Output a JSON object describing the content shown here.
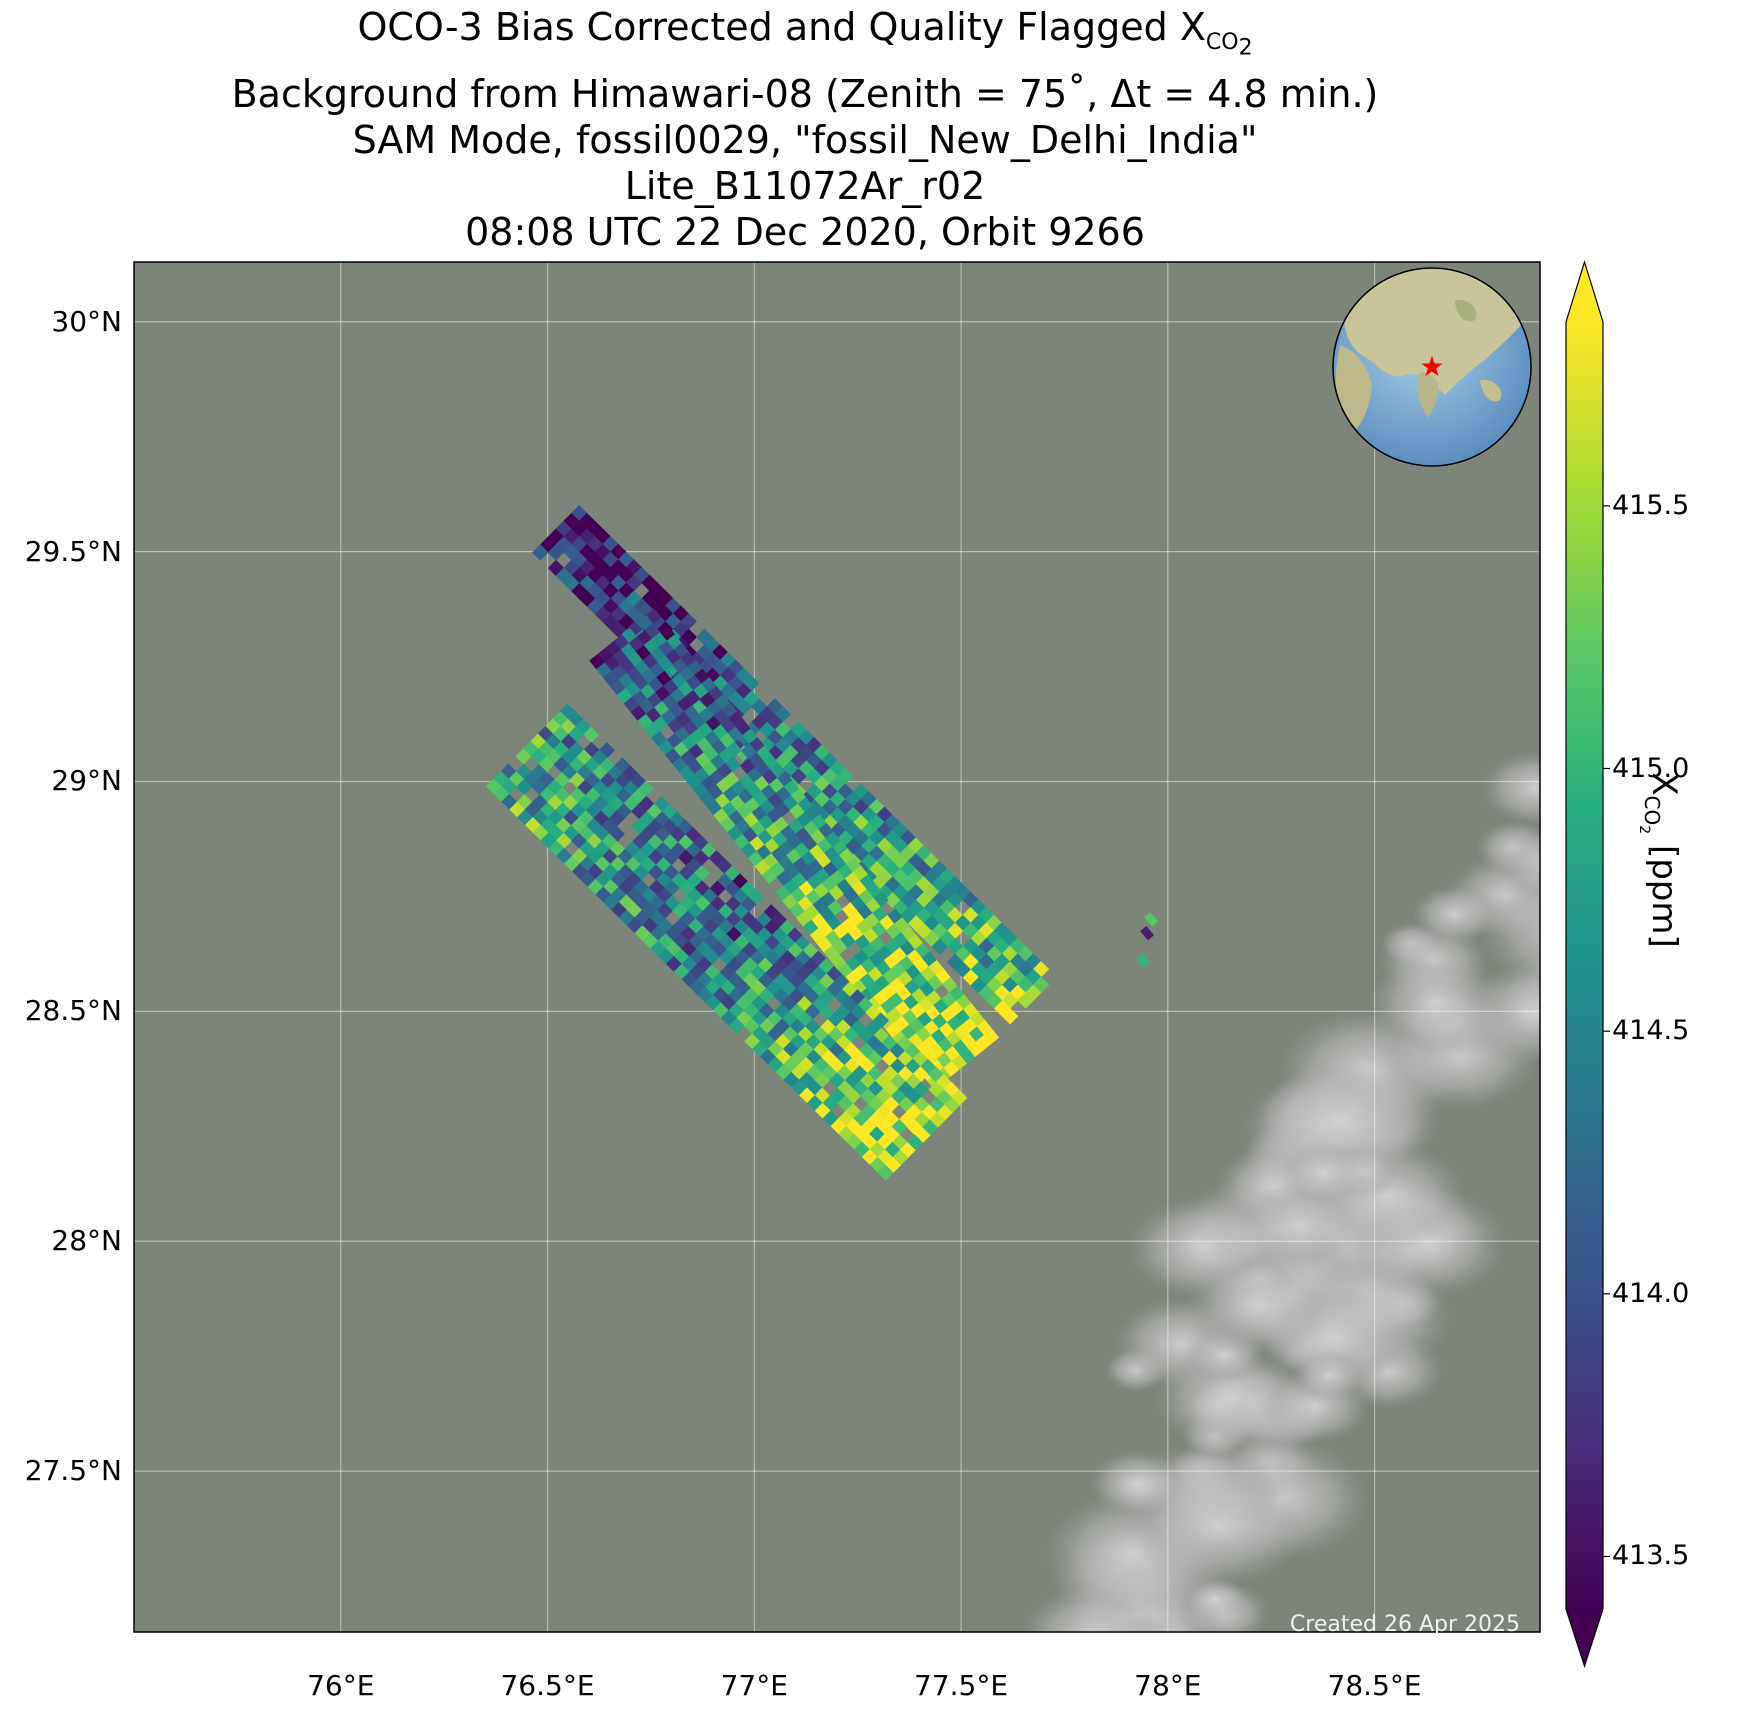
{
  "title": {
    "line1_text": "OCO-3 Bias Corrected and Quality Flagged X",
    "line1_sub": "CO",
    "line1_subsub": "2",
    "line2": "Background from Himawari-08 (Zenith = 75˚, Δt =  4.8 min.)",
    "line3": "SAM Mode, fossil0029, \"fossil_New_Delhi_India\"",
    "line4": "Lite_B11072Ar_r02",
    "line5": "08:08 UTC 22 Dec 2020, Orbit 9266"
  },
  "map": {
    "lon_range": [
      75.5,
      78.9
    ],
    "lat_range": [
      27.15,
      30.13
    ],
    "lon_ticks": [
      {
        "value": 76.0,
        "label": "76°E"
      },
      {
        "value": 76.5,
        "label": "76.5°E"
      },
      {
        "value": 77.0,
        "label": "77°E"
      },
      {
        "value": 77.5,
        "label": "77.5°E"
      },
      {
        "value": 78.0,
        "label": "78°E"
      },
      {
        "value": 78.5,
        "label": "78.5°E"
      }
    ],
    "lat_ticks": [
      {
        "value": 30.0,
        "label": "30°N"
      },
      {
        "value": 29.5,
        "label": "29.5°N"
      },
      {
        "value": 29.0,
        "label": "29°N"
      },
      {
        "value": 28.5,
        "label": "28.5°N"
      },
      {
        "value": 28.0,
        "label": "28°N"
      },
      {
        "value": 27.5,
        "label": "27.5°N"
      }
    ],
    "grid": true,
    "background_color": "#7d8479",
    "cloud_color": "#c9c9c9",
    "inset_marker": "red-star",
    "inset_marker_color": "#ff0000",
    "site": {
      "lon": 77.2,
      "lat": 28.6,
      "name": "fossil_New_Delhi_India"
    }
  },
  "colorbar": {
    "label_text": "X",
    "label_sub": "CO",
    "label_subsub": "2",
    "label_unit": "[ppm]",
    "vmin": 413.4,
    "vmax": 415.85,
    "extend": "both",
    "ticks": [
      413.5,
      414.0,
      414.5,
      415.0,
      415.5
    ],
    "tick_labels": [
      "413.5",
      "414.0",
      "414.5",
      "415.0",
      "415.5"
    ],
    "colormap": "viridis"
  },
  "chart_data": {
    "type": "heatmap",
    "swaths": [
      {
        "start": {
          "lon": 76.52,
          "lat": 29.55
        },
        "end": {
          "lon": 77.68,
          "lat": 28.52
        },
        "width_deg": 0.16,
        "gradient": [
          413.5,
          414.6,
          415.2
        ]
      },
      {
        "start": {
          "lon": 76.68,
          "lat": 29.32
        },
        "end": {
          "lon": 77.52,
          "lat": 28.38
        },
        "width_deg": 0.2,
        "gradient": [
          414.0,
          414.9,
          415.8
        ]
      },
      {
        "start": {
          "lon": 76.45,
          "lat": 29.08
        },
        "end": {
          "lon": 77.42,
          "lat": 28.22
        },
        "width_deg": 0.28,
        "gradient": [
          414.8,
          414.3,
          415.7
        ]
      }
    ],
    "isolated_soundings": [
      {
        "lon": 77.96,
        "lat": 28.7,
        "value": 415.2
      },
      {
        "lon": 77.95,
        "lat": 28.67,
        "value": 413.6
      },
      {
        "lon": 77.94,
        "lat": 28.61,
        "value": 415.0
      }
    ]
  },
  "footer": {
    "created": "Created 26 Apr 2025"
  }
}
